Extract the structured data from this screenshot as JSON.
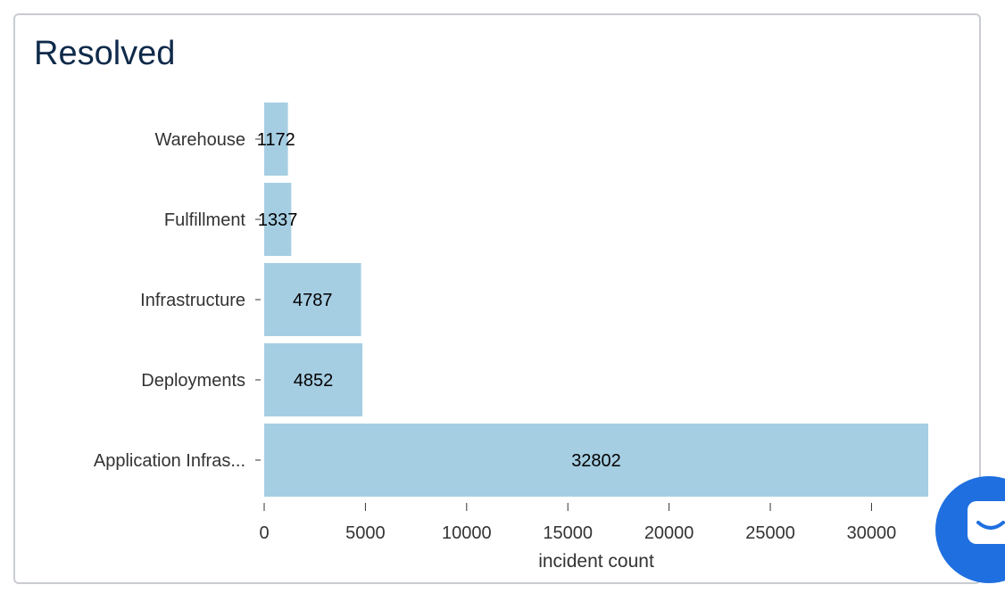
{
  "card": {
    "title": "Resolved"
  },
  "chart_data": {
    "type": "bar",
    "orientation": "horizontal",
    "categories": [
      "Warehouse",
      "Fulfillment",
      "Infrastructure",
      "Deployments",
      "Application Infras..."
    ],
    "values": [
      1172,
      1337,
      4787,
      4852,
      32802
    ],
    "title": "Resolved",
    "xlabel": "incident count",
    "ylabel": "",
    "xlim": [
      0,
      32802
    ],
    "xticks": [
      0,
      5000,
      10000,
      15000,
      20000,
      25000,
      30000
    ],
    "bar_color": "#a6cee3",
    "data_labels": true,
    "grid": false,
    "legend": "none"
  },
  "chat_widget": {
    "icon": "chat-icon",
    "color": "#1f6fe0"
  }
}
